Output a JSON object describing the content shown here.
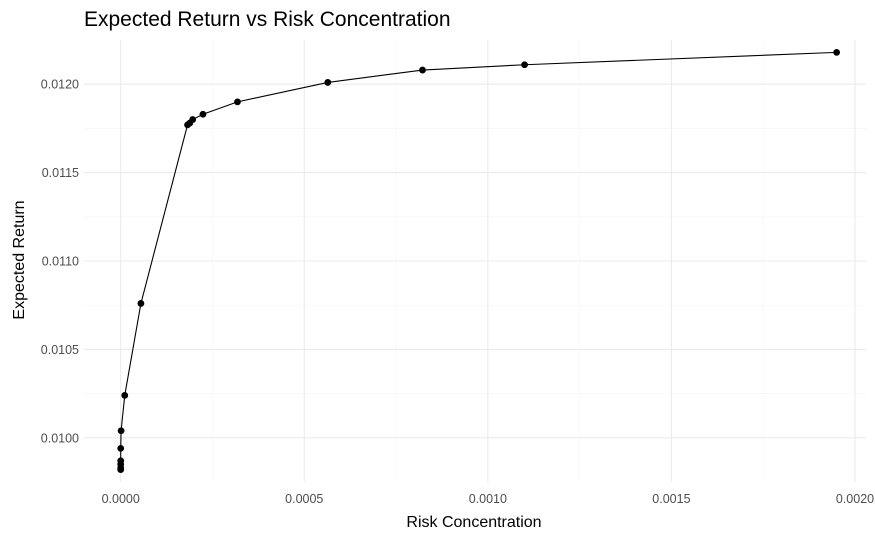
{
  "chart_data": {
    "type": "line",
    "title": "Expected Return vs Risk Concentration",
    "xlabel": "Risk Concentration",
    "ylabel": "Expected Return",
    "xlim": [
      -0.0001,
      0.00203
    ],
    "ylim": [
      0.00975,
      0.01225
    ],
    "x_ticks": [
      0.0,
      0.0005,
      0.001,
      0.0015,
      0.002
    ],
    "x_tick_labels": [
      "0.0000",
      "0.0005",
      "0.0010",
      "0.0015",
      "0.0020"
    ],
    "y_ticks": [
      0.01,
      0.0105,
      0.011,
      0.0115,
      0.012
    ],
    "y_tick_labels": [
      "0.0100",
      "0.0105",
      "0.0110",
      "0.0115",
      "0.0120"
    ],
    "grid": true,
    "legend": "none",
    "series": [
      {
        "color": "#000000",
        "points": [
          [
            0.0,
            0.00982
          ],
          [
            0.0,
            0.00983
          ],
          [
            0.0,
            0.00985
          ],
          [
            0.0,
            0.00987
          ],
          [
            0.0,
            0.00994
          ],
          [
            1e-06,
            0.01004
          ],
          [
            1.1e-05,
            0.01024
          ],
          [
            5.5e-05,
            0.01076
          ],
          [
            0.000182,
            0.01177
          ],
          [
            0.000188,
            0.01178
          ],
          [
            0.000196,
            0.0118
          ],
          [
            0.000224,
            0.01183
          ],
          [
            0.000318,
            0.0119
          ],
          [
            0.000564,
            0.01201
          ],
          [
            0.000822,
            0.01208
          ],
          [
            0.0011,
            0.01211
          ],
          [
            0.00195,
            0.01218
          ]
        ]
      }
    ]
  }
}
